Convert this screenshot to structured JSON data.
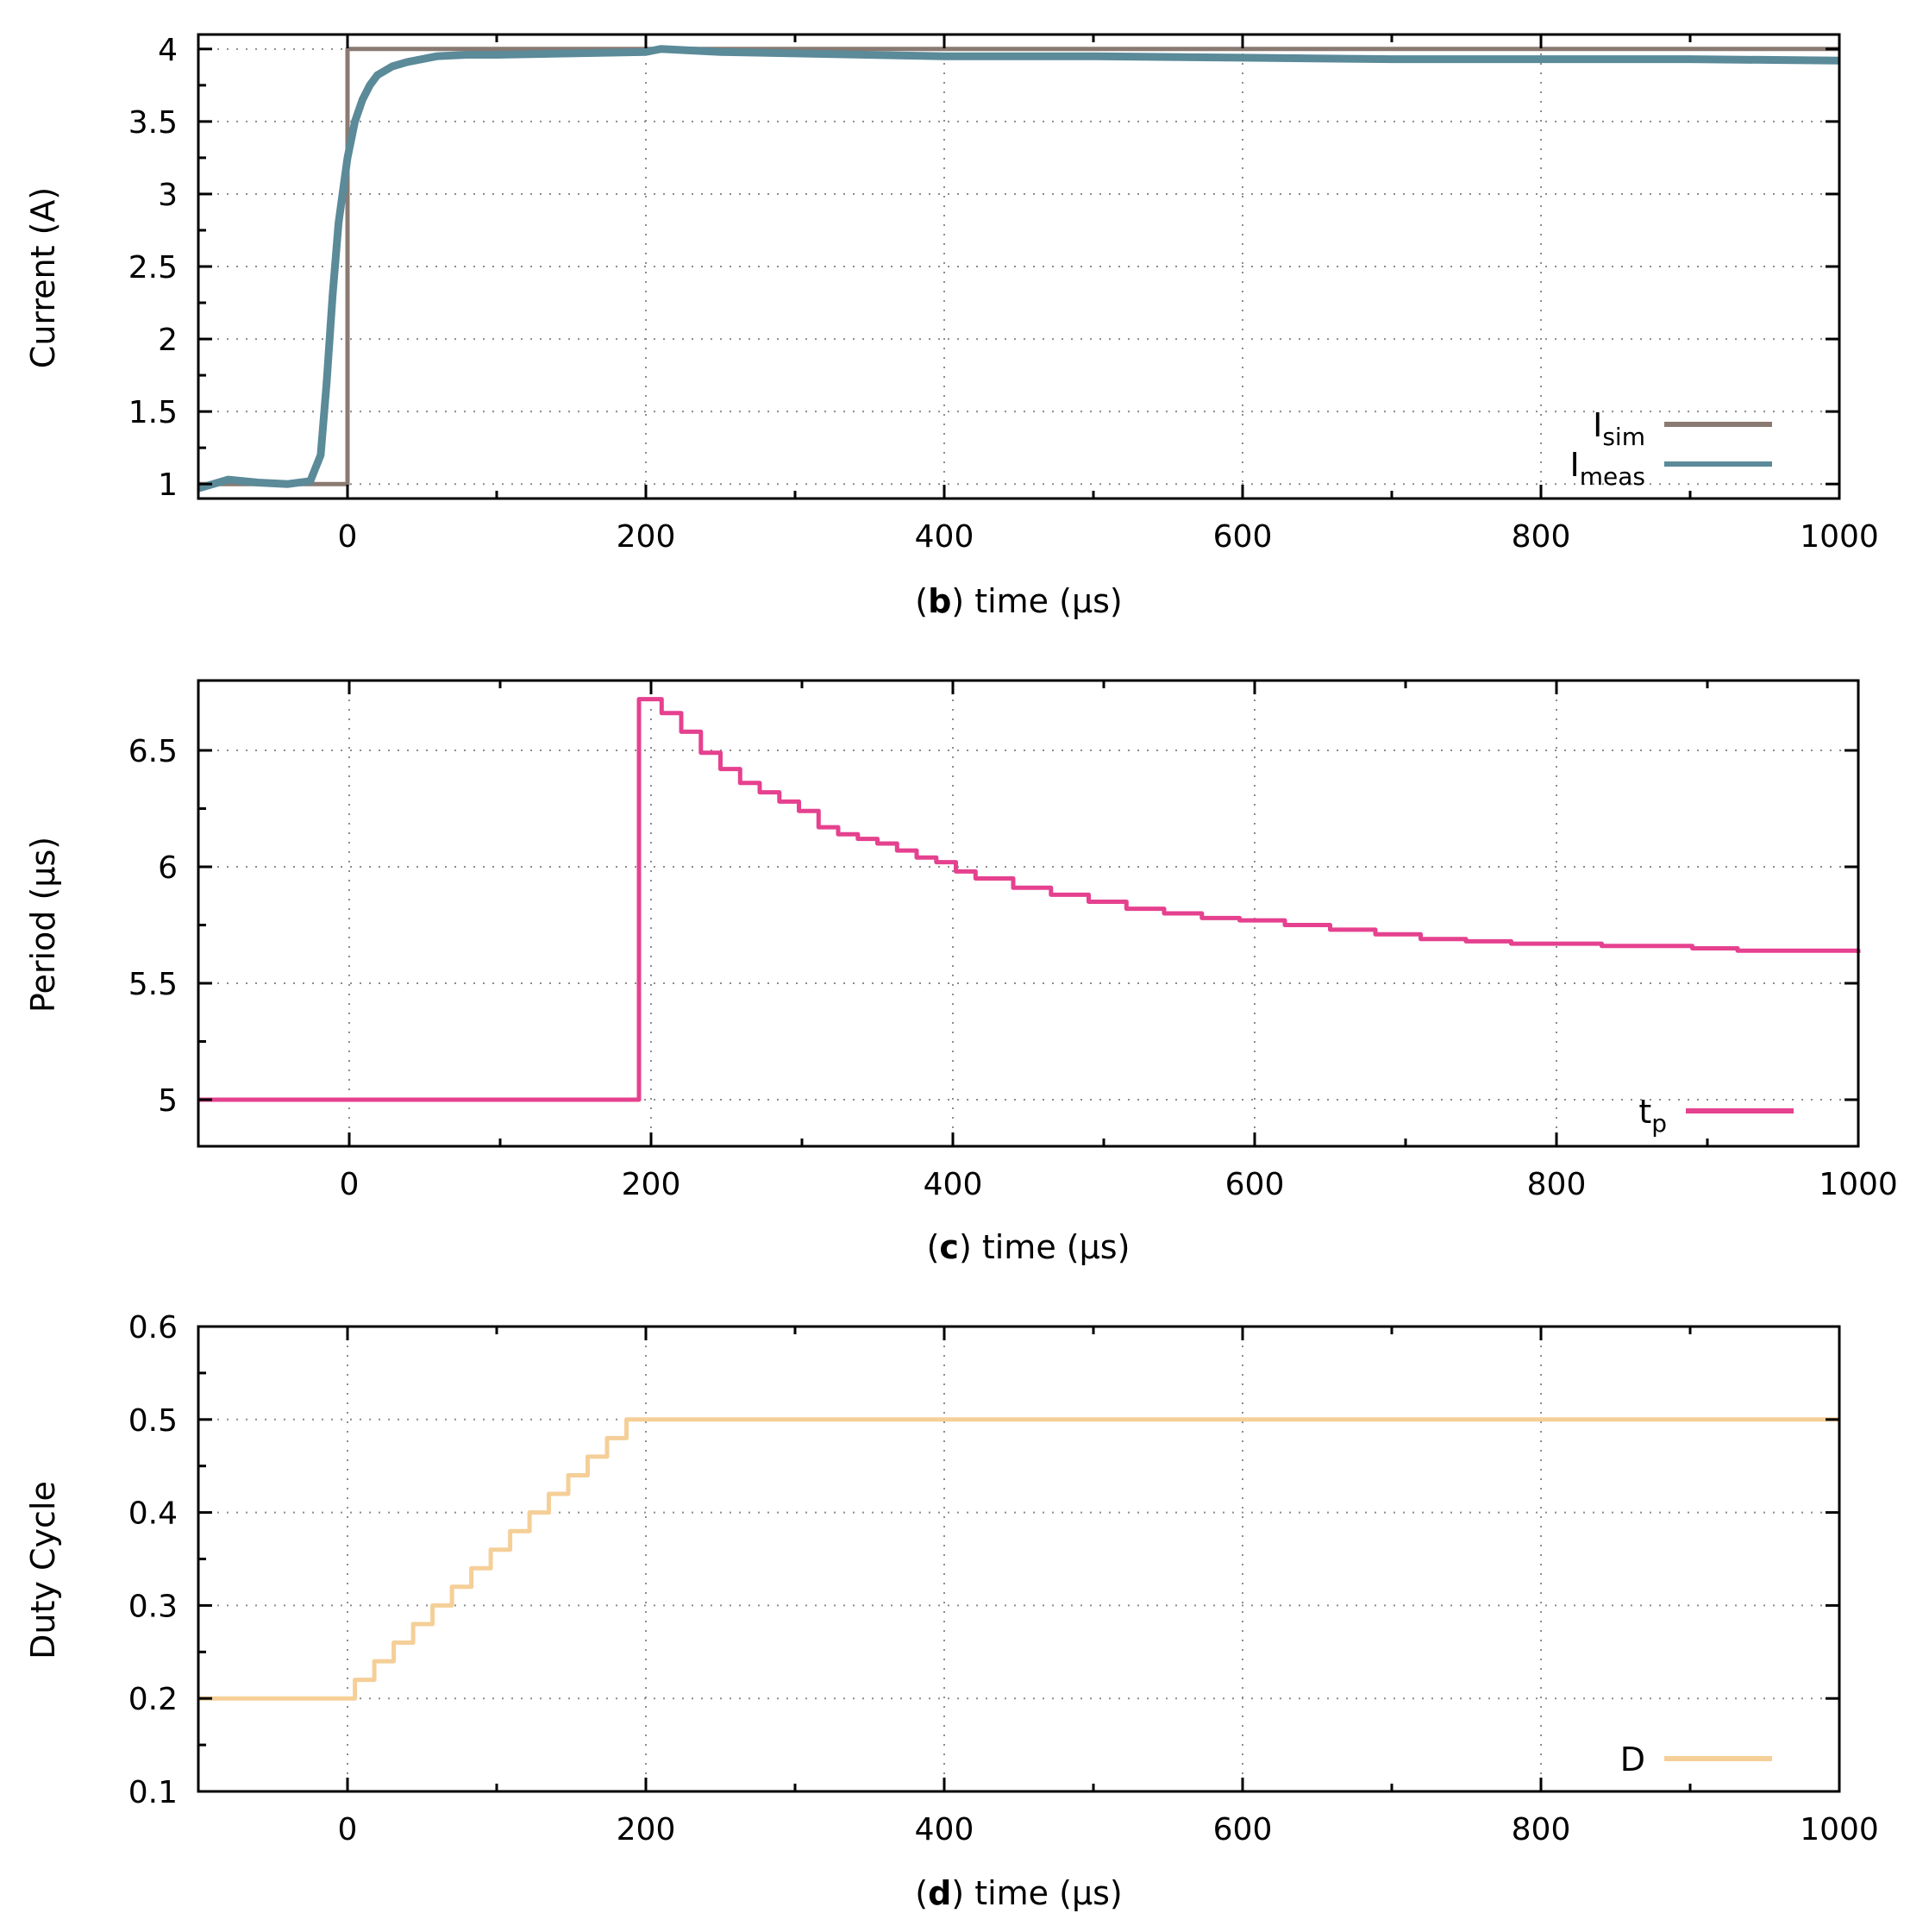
{
  "chart_data": [
    {
      "id": "b",
      "type": "line",
      "panel_letter": "b",
      "xlabel": "time (µs)",
      "ylabel": "Current (A)",
      "xlim": [
        -100,
        1000
      ],
      "ylim": [
        0.9,
        4.1
      ],
      "x_ticks": [
        0,
        200,
        400,
        600,
        800,
        1000
      ],
      "y_ticks": [
        1,
        1.5,
        2,
        2.5,
        3,
        3.5,
        4
      ],
      "y_tick_labels": [
        "1",
        "1.5",
        "2",
        "2.5",
        "3",
        "3.5",
        "4"
      ],
      "grid": true,
      "legend_position": "bottom-right",
      "series": [
        {
          "name": "I",
          "name_sub": "sim",
          "color": "#8a7a72",
          "x": [
            -100,
            0,
            0,
            1000
          ],
          "y": [
            1,
            1,
            4,
            4
          ]
        },
        {
          "name": "I",
          "name_sub": "meas",
          "color": "#5b8a99",
          "x": [
            -100,
            -80,
            -60,
            -40,
            -25,
            -18,
            -14,
            -10,
            -6,
            -2,
            0,
            5,
            10,
            15,
            20,
            30,
            40,
            50,
            60,
            80,
            100,
            150,
            200,
            210,
            250,
            300,
            400,
            500,
            600,
            700,
            800,
            900,
            1000
          ],
          "y": [
            0.97,
            1.03,
            1.01,
            1.0,
            1.02,
            1.2,
            1.7,
            2.3,
            2.8,
            3.1,
            3.25,
            3.5,
            3.65,
            3.75,
            3.82,
            3.88,
            3.91,
            3.93,
            3.95,
            3.96,
            3.96,
            3.97,
            3.98,
            4.0,
            3.98,
            3.97,
            3.95,
            3.95,
            3.94,
            3.93,
            3.93,
            3.93,
            3.92
          ]
        }
      ]
    },
    {
      "id": "c",
      "type": "line",
      "panel_letter": "c",
      "xlabel": "time (µs)",
      "ylabel": "Period (µs)",
      "xlim": [
        -100,
        1000
      ],
      "ylim": [
        4.8,
        6.8
      ],
      "x_ticks": [
        0,
        200,
        400,
        600,
        800,
        1000
      ],
      "y_ticks": [
        5,
        5.5,
        6,
        6.5
      ],
      "y_tick_labels": [
        "5",
        "5.5",
        "6",
        "6.5"
      ],
      "grid": true,
      "legend_position": "bottom-right",
      "series": [
        {
          "name": "t",
          "name_sub": "p",
          "color": "#e5418f",
          "step": true,
          "x": [
            -100,
            192,
            207,
            220,
            233,
            246,
            259,
            272,
            285,
            298,
            311,
            324,
            337,
            350,
            363,
            376,
            389,
            402,
            415,
            440,
            465,
            490,
            515,
            540,
            565,
            590,
            620,
            650,
            680,
            710,
            740,
            770,
            800,
            830,
            860,
            890,
            920,
            950,
            985,
            1000
          ],
          "y": [
            5.0,
            6.72,
            6.66,
            6.58,
            6.49,
            6.42,
            6.36,
            6.32,
            6.28,
            6.24,
            6.17,
            6.14,
            6.12,
            6.1,
            6.07,
            6.04,
            6.02,
            5.98,
            5.95,
            5.91,
            5.88,
            5.85,
            5.82,
            5.8,
            5.78,
            5.77,
            5.75,
            5.73,
            5.71,
            5.69,
            5.68,
            5.67,
            5.67,
            5.66,
            5.66,
            5.65,
            5.64,
            5.64,
            5.64,
            5.63
          ]
        }
      ]
    },
    {
      "id": "d",
      "type": "line",
      "panel_letter": "d",
      "xlabel": "time (µs)",
      "ylabel": "Duty Cycle",
      "xlim": [
        -100,
        1000
      ],
      "ylim": [
        0.1,
        0.6
      ],
      "x_ticks": [
        0,
        200,
        400,
        600,
        800,
        1000
      ],
      "y_ticks": [
        0.1,
        0.2,
        0.3,
        0.4,
        0.5,
        0.6
      ],
      "y_tick_labels": [
        "0.1",
        "0.2",
        "0.3",
        "0.4",
        "0.5",
        "0.6"
      ],
      "grid": true,
      "legend_position": "bottom-right",
      "series": [
        {
          "name": "D",
          "name_sub": "",
          "color": "#f5cf98",
          "step": true,
          "x": [
            -100,
            5,
            18,
            31,
            44,
            57,
            70,
            83,
            96,
            109,
            122,
            135,
            148,
            161,
            174,
            187,
            1000
          ],
          "y": [
            0.2,
            0.22,
            0.24,
            0.26,
            0.28,
            0.3,
            0.32,
            0.34,
            0.36,
            0.38,
            0.4,
            0.42,
            0.44,
            0.46,
            0.48,
            0.5,
            0.5
          ]
        }
      ]
    }
  ]
}
